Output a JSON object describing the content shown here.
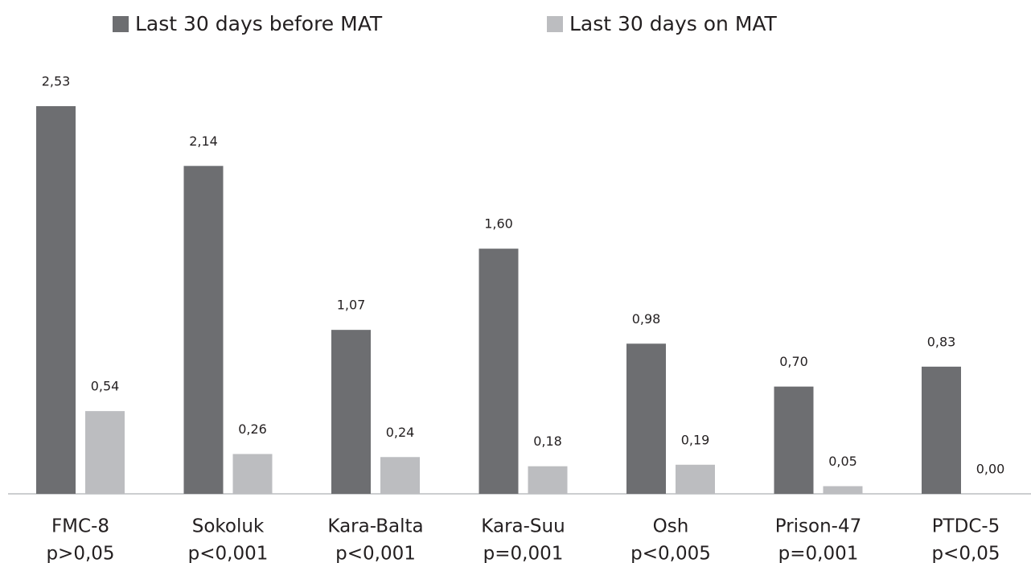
{
  "chart_data": {
    "type": "bar",
    "categories": [
      "FMC-8",
      "Sokoluk",
      "Kara-Balta",
      "Kara-Suu",
      "Osh",
      "Prison-47",
      "PTDC-5"
    ],
    "p_values": [
      "p>0,05",
      "p<0,001",
      "p<0,001",
      "p=0,001",
      "p<0,005",
      "p=0,001",
      "p<0,05"
    ],
    "series": [
      {
        "name": "Last 30 days before MAT",
        "color": "#6d6e71",
        "values": [
          2.53,
          2.14,
          1.07,
          1.6,
          0.98,
          0.7,
          0.83
        ],
        "value_labels": [
          "2,53",
          "2,14",
          "1,07",
          "1,60",
          "0,98",
          "0,70",
          "0,83"
        ]
      },
      {
        "name": "Last 30 days on MAT",
        "color": "#bcbdc0",
        "values": [
          0.54,
          0.26,
          0.24,
          0.18,
          0.19,
          0.05,
          0.0
        ],
        "value_labels": [
          "0,54",
          "0,26",
          "0,24",
          "0,18",
          "0,19",
          "0,05",
          "0,00"
        ]
      }
    ]
  }
}
